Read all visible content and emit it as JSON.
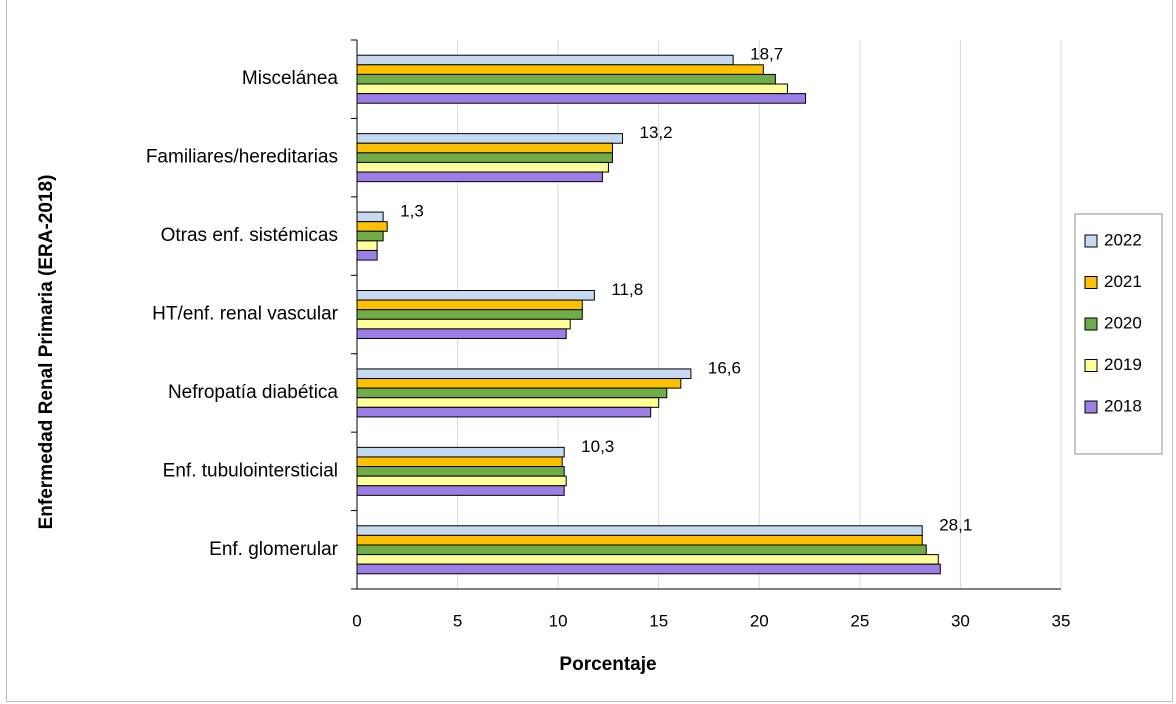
{
  "chart_data": {
    "type": "bar",
    "orientation": "horizontal",
    "title": "",
    "xlabel": "Porcentaje",
    "ylabel": "Enfermedad Renal Primaria (ERA-2018)",
    "xlim": [
      0,
      35
    ],
    "xticks": [
      "0",
      "5",
      "10",
      "15",
      "20",
      "25",
      "30",
      "35"
    ],
    "grid": "vertical",
    "legend_position": "right",
    "categories": [
      "Miscelánea",
      "Familiares/hereditarias",
      "Otras enf. sistémicas",
      "HT/enf. renal vascular",
      "Nefropatía diabética",
      "Enf. tubulointersticial",
      "Enf. glomerular"
    ],
    "series": [
      {
        "name": "2022",
        "color": "#c5d9f1",
        "values": [
          18.7,
          13.2,
          1.3,
          11.8,
          16.6,
          10.3,
          28.1
        ],
        "labels": [
          "18,7",
          "13,2",
          "1,3",
          "11,8",
          "16,6",
          "10,3",
          "28,1"
        ]
      },
      {
        "name": "2021",
        "color": "#ffc000",
        "values": [
          20.2,
          12.7,
          1.5,
          11.2,
          16.1,
          10.2,
          28.1
        ]
      },
      {
        "name": "2020",
        "color": "#70ad47",
        "values": [
          20.8,
          12.7,
          1.3,
          11.2,
          15.4,
          10.3,
          28.3
        ]
      },
      {
        "name": "2019",
        "color": "#ffff99",
        "values": [
          21.4,
          12.5,
          1.0,
          10.6,
          15.0,
          10.4,
          28.9
        ]
      },
      {
        "name": "2018",
        "color": "#9b7fe6",
        "values": [
          22.3,
          12.2,
          1.0,
          10.4,
          14.6,
          10.3,
          29.0
        ]
      }
    ],
    "legend_order": [
      "2022",
      "2021",
      "2020",
      "2019",
      "2018"
    ]
  }
}
